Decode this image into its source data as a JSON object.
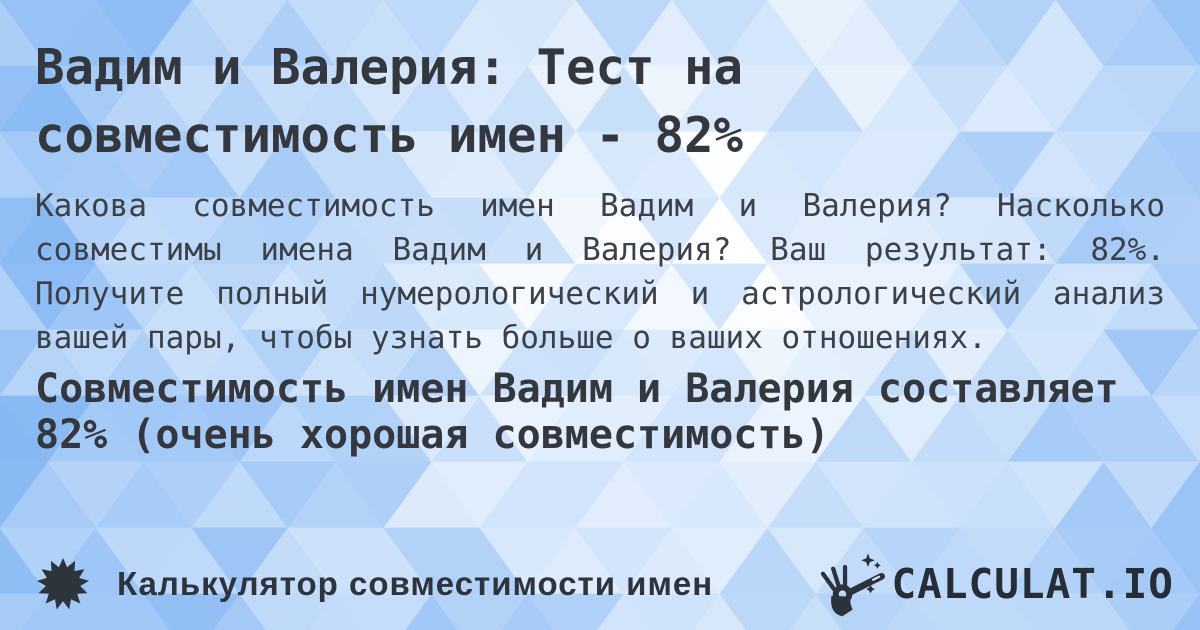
{
  "card": {
    "title": "Вадим и Валерия: Тест на совместимость имен - 82%",
    "description": "Какова совместимость имен Вадим и Валерия? Насколько совместимы имена Вадим и Валерия? Ваш результат: 82%. Получите полный нумерологический и астрологический анализ вашей пары, чтобы узнать больше о ваших отношениях.",
    "result_summary": "Совместимость имен Вадим и Валерия составляет 82% (очень хорошая совместимость)",
    "result": {
      "name_1": "Вадим",
      "name_2": "Валерия",
      "percent": "82%",
      "verdict": "очень хорошая совместимость"
    }
  },
  "footer": {
    "label": "Калькулятор совместимости имен",
    "brand_name": "CALCULAT.IO",
    "icons": {
      "badge": "starburst-icon",
      "logo": "magic-wand-hand-icon"
    }
  },
  "colors": {
    "background_light": "#ffffff",
    "background_blue": "#86b8f4",
    "title_text": "#34383e",
    "body_text": "#3c4148",
    "footer_text": "#2e343b",
    "logo_text": "#272d36"
  }
}
